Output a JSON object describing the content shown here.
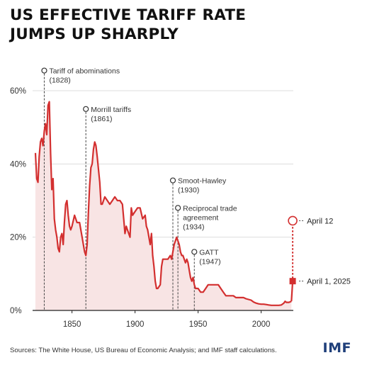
{
  "title_line1": "US EFFECTIVE TARIFF RATE",
  "title_line2": "JUMPS UP SHARPLY",
  "source": "Sources: The White House, US Bureau of Economic Analysis; and IMF staff calculations.",
  "logo": "IMF",
  "colors": {
    "line": "#d32f2f",
    "area": "#f8e4e4",
    "grid": "#dddddd",
    "axis": "#222222",
    "text": "#333333",
    "logo": "#1f3f7a"
  },
  "chart_data": {
    "type": "area",
    "ylim": [
      0,
      60
    ],
    "xlim": [
      1821,
      2030
    ],
    "xticks": [
      1850,
      1900,
      1950,
      2000
    ],
    "yticks": [
      0,
      20,
      40,
      60
    ],
    "ytick_labels": [
      "0%",
      "20%",
      "40%",
      "60%"
    ],
    "grid": true,
    "series": [
      {
        "values": [
          [
            1821,
            43
          ],
          [
            1822,
            36
          ],
          [
            1823,
            35
          ],
          [
            1824,
            42
          ],
          [
            1825,
            46
          ],
          [
            1826,
            47
          ],
          [
            1827,
            45
          ],
          [
            1828,
            49
          ],
          [
            1829,
            51
          ],
          [
            1830,
            48
          ],
          [
            1831,
            56
          ],
          [
            1832,
            57
          ],
          [
            1833,
            43
          ],
          [
            1834,
            33
          ],
          [
            1835,
            36
          ],
          [
            1836,
            25
          ],
          [
            1837,
            22
          ],
          [
            1838,
            20
          ],
          [
            1839,
            17
          ],
          [
            1840,
            16
          ],
          [
            1841,
            20
          ],
          [
            1842,
            21
          ],
          [
            1843,
            18
          ],
          [
            1844,
            24
          ],
          [
            1845,
            29
          ],
          [
            1846,
            30
          ],
          [
            1847,
            26
          ],
          [
            1848,
            23
          ],
          [
            1849,
            22
          ],
          [
            1850,
            23
          ],
          [
            1852,
            26
          ],
          [
            1854,
            24
          ],
          [
            1856,
            24
          ],
          [
            1858,
            20
          ],
          [
            1860,
            16
          ],
          [
            1861,
            15
          ],
          [
            1862,
            18
          ],
          [
            1863,
            27
          ],
          [
            1864,
            34
          ],
          [
            1865,
            39
          ],
          [
            1866,
            40
          ],
          [
            1867,
            44
          ],
          [
            1868,
            46
          ],
          [
            1869,
            45
          ],
          [
            1870,
            42
          ],
          [
            1872,
            35
          ],
          [
            1873,
            29
          ],
          [
            1874,
            29
          ],
          [
            1876,
            31
          ],
          [
            1878,
            30
          ],
          [
            1880,
            29
          ],
          [
            1882,
            30
          ],
          [
            1884,
            31
          ],
          [
            1886,
            30
          ],
          [
            1888,
            30
          ],
          [
            1890,
            29
          ],
          [
            1891,
            25
          ],
          [
            1892,
            21
          ],
          [
            1893,
            23
          ],
          [
            1894,
            22
          ],
          [
            1896,
            20
          ],
          [
            1897,
            28
          ],
          [
            1898,
            26
          ],
          [
            1900,
            27
          ],
          [
            1902,
            28
          ],
          [
            1904,
            28
          ],
          [
            1906,
            25
          ],
          [
            1908,
            26
          ],
          [
            1909,
            23
          ],
          [
            1910,
            22
          ],
          [
            1912,
            18
          ],
          [
            1913,
            21
          ],
          [
            1914,
            15
          ],
          [
            1915,
            12
          ],
          [
            1916,
            8
          ],
          [
            1917,
            6
          ],
          [
            1918,
            6
          ],
          [
            1920,
            7
          ],
          [
            1921,
            12
          ],
          [
            1922,
            14
          ],
          [
            1924,
            14
          ],
          [
            1926,
            14
          ],
          [
            1928,
            15
          ],
          [
            1929,
            14
          ],
          [
            1930,
            16
          ],
          [
            1931,
            18
          ],
          [
            1932,
            19
          ],
          [
            1933,
            20
          ],
          [
            1934,
            19
          ],
          [
            1935,
            18
          ],
          [
            1936,
            16
          ],
          [
            1937,
            15
          ],
          [
            1938,
            15
          ],
          [
            1940,
            13
          ],
          [
            1941,
            14
          ],
          [
            1942,
            13
          ],
          [
            1943,
            11
          ],
          [
            1944,
            9
          ],
          [
            1945,
            8
          ],
          [
            1946,
            9
          ],
          [
            1947,
            7
          ],
          [
            1948,
            6
          ],
          [
            1950,
            6
          ],
          [
            1952,
            5
          ],
          [
            1954,
            5
          ],
          [
            1956,
            6
          ],
          [
            1958,
            7
          ],
          [
            1960,
            7
          ],
          [
            1962,
            7
          ],
          [
            1964,
            7
          ],
          [
            1966,
            7
          ],
          [
            1968,
            6
          ],
          [
            1970,
            5
          ],
          [
            1972,
            4
          ],
          [
            1974,
            4
          ],
          [
            1976,
            4
          ],
          [
            1978,
            4
          ],
          [
            1980,
            3.5
          ],
          [
            1982,
            3.5
          ],
          [
            1984,
            3.5
          ],
          [
            1986,
            3.5
          ],
          [
            1988,
            3.2
          ],
          [
            1990,
            3
          ],
          [
            1992,
            2.8
          ],
          [
            1994,
            2.3
          ],
          [
            1996,
            2
          ],
          [
            1998,
            1.8
          ],
          [
            2000,
            1.7
          ],
          [
            2002,
            1.7
          ],
          [
            2004,
            1.6
          ],
          [
            2006,
            1.5
          ],
          [
            2008,
            1.4
          ],
          [
            2010,
            1.4
          ],
          [
            2012,
            1.4
          ],
          [
            2014,
            1.4
          ],
          [
            2016,
            1.5
          ],
          [
            2018,
            2
          ],
          [
            2019,
            2.5
          ],
          [
            2020,
            2.2
          ],
          [
            2022,
            2.2
          ],
          [
            2024,
            2.5
          ]
        ]
      }
    ],
    "events": [
      {
        "label": "Tariff of abominations",
        "sub": "(1828)",
        "year": 1828,
        "y_marker": 65.5
      },
      {
        "label": "Morrill tariffs",
        "sub": "(1861)",
        "year": 1861,
        "y_marker": 55
      },
      {
        "label": "Smoot-Hawley",
        "sub": "(1930)",
        "year": 1930,
        "y_marker": 35.5
      },
      {
        "label": "Reciprocal trade",
        "label2": "agreement",
        "sub": "(1934)",
        "year": 1934,
        "y_marker": 28
      },
      {
        "label": "GATT",
        "sub": "(1947)",
        "year": 1947,
        "y_marker": 16
      }
    ],
    "points": [
      {
        "label": "April 1, 2025",
        "year": 2025,
        "value": 8
      },
      {
        "label": "April 12",
        "year": 2025,
        "value": 24.5
      }
    ]
  }
}
